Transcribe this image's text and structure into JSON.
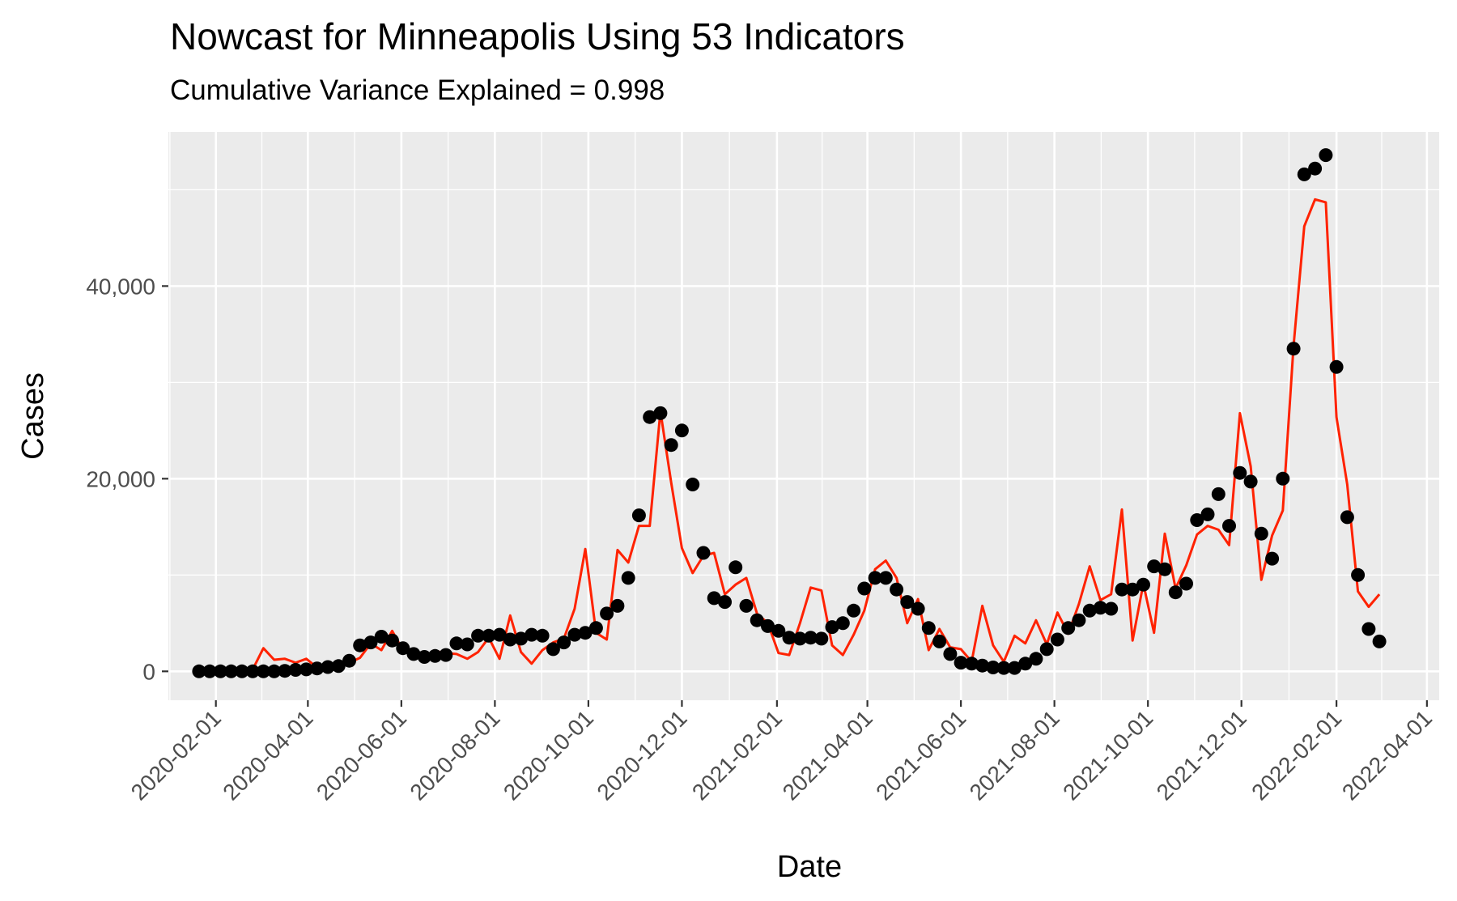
{
  "chart_data": {
    "type": "line",
    "title": "Nowcast for Minneapolis Using 53 Indicators",
    "subtitle": "Cumulative Variance Explained = 0.998",
    "xlabel": "Date",
    "ylabel": "Cases",
    "x_type": "date",
    "xlim": [
      "2020-01-01",
      "2022-04-09"
    ],
    "ylim": [
      -3000,
      56000
    ],
    "x_ticks": [
      "2020-02-01",
      "2020-04-01",
      "2020-06-01",
      "2020-08-01",
      "2020-10-01",
      "2020-12-01",
      "2021-02-01",
      "2021-04-01",
      "2021-06-01",
      "2021-08-01",
      "2021-10-01",
      "2021-12-01",
      "2022-02-01",
      "2022-04-01"
    ],
    "y_ticks": [
      0,
      20000,
      40000
    ],
    "y_tick_labels": [
      "0",
      "20,000",
      "40,000"
    ],
    "grid": true,
    "background": "#EBEBEB",
    "series": [
      {
        "role": "points",
        "color": "#000000",
        "points": [
          [
            "2020-01-21",
            0
          ],
          [
            "2020-01-28",
            0
          ],
          [
            "2020-02-04",
            0
          ],
          [
            "2020-02-11",
            0
          ],
          [
            "2020-02-18",
            0
          ],
          [
            "2020-02-25",
            0
          ],
          [
            "2020-03-03",
            0
          ],
          [
            "2020-03-10",
            0
          ],
          [
            "2020-03-17",
            50
          ],
          [
            "2020-03-24",
            150
          ],
          [
            "2020-03-31",
            200
          ],
          [
            "2020-04-07",
            300
          ],
          [
            "2020-04-14",
            450
          ],
          [
            "2020-04-21",
            550
          ],
          [
            "2020-04-28",
            1100
          ],
          [
            "2020-05-05",
            2700
          ],
          [
            "2020-05-12",
            3000
          ],
          [
            "2020-05-19",
            3600
          ],
          [
            "2020-05-26",
            3200
          ],
          [
            "2020-06-02",
            2400
          ],
          [
            "2020-06-09",
            1800
          ],
          [
            "2020-06-16",
            1500
          ],
          [
            "2020-06-23",
            1600
          ],
          [
            "2020-06-30",
            1700
          ],
          [
            "2020-07-07",
            2900
          ],
          [
            "2020-07-14",
            2800
          ],
          [
            "2020-07-21",
            3700
          ],
          [
            "2020-07-28",
            3700
          ],
          [
            "2020-08-04",
            3800
          ],
          [
            "2020-08-11",
            3300
          ],
          [
            "2020-08-18",
            3400
          ],
          [
            "2020-08-25",
            3800
          ],
          [
            "2020-09-01",
            3700
          ],
          [
            "2020-09-08",
            2300
          ],
          [
            "2020-09-15",
            3000
          ],
          [
            "2020-09-22",
            3800
          ],
          [
            "2020-09-29",
            4000
          ],
          [
            "2020-10-06",
            4500
          ],
          [
            "2020-10-13",
            6000
          ],
          [
            "2020-10-20",
            6800
          ],
          [
            "2020-10-27",
            9700
          ],
          [
            "2020-11-03",
            16200
          ],
          [
            "2020-11-10",
            26400
          ],
          [
            "2020-11-17",
            26800
          ],
          [
            "2020-11-24",
            23500
          ],
          [
            "2020-12-01",
            25000
          ],
          [
            "2020-12-08",
            19400
          ],
          [
            "2020-12-15",
            12300
          ],
          [
            "2020-12-22",
            7600
          ],
          [
            "2020-12-29",
            7200
          ],
          [
            "2021-01-05",
            10800
          ],
          [
            "2021-01-12",
            6800
          ],
          [
            "2021-01-19",
            5300
          ],
          [
            "2021-01-26",
            4700
          ],
          [
            "2021-02-02",
            4200
          ],
          [
            "2021-02-09",
            3500
          ],
          [
            "2021-02-16",
            3400
          ],
          [
            "2021-02-23",
            3500
          ],
          [
            "2021-03-02",
            3400
          ],
          [
            "2021-03-09",
            4600
          ],
          [
            "2021-03-16",
            5000
          ],
          [
            "2021-03-23",
            6300
          ],
          [
            "2021-03-30",
            8600
          ],
          [
            "2021-04-06",
            9700
          ],
          [
            "2021-04-13",
            9700
          ],
          [
            "2021-04-20",
            8500
          ],
          [
            "2021-04-27",
            7200
          ],
          [
            "2021-05-04",
            6500
          ],
          [
            "2021-05-11",
            4500
          ],
          [
            "2021-05-18",
            3100
          ],
          [
            "2021-05-25",
            1800
          ],
          [
            "2021-06-01",
            900
          ],
          [
            "2021-06-08",
            800
          ],
          [
            "2021-06-15",
            600
          ],
          [
            "2021-06-22",
            400
          ],
          [
            "2021-06-29",
            350
          ],
          [
            "2021-07-06",
            350
          ],
          [
            "2021-07-13",
            800
          ],
          [
            "2021-07-20",
            1300
          ],
          [
            "2021-07-27",
            2300
          ],
          [
            "2021-08-03",
            3300
          ],
          [
            "2021-08-10",
            4500
          ],
          [
            "2021-08-17",
            5300
          ],
          [
            "2021-08-24",
            6300
          ],
          [
            "2021-08-31",
            6600
          ],
          [
            "2021-09-07",
            6500
          ],
          [
            "2021-09-14",
            8500
          ],
          [
            "2021-09-21",
            8500
          ],
          [
            "2021-09-28",
            9000
          ],
          [
            "2021-10-05",
            10900
          ],
          [
            "2021-10-12",
            10600
          ],
          [
            "2021-10-19",
            8200
          ],
          [
            "2021-10-26",
            9100
          ],
          [
            "2021-11-02",
            15700
          ],
          [
            "2021-11-09",
            16300
          ],
          [
            "2021-11-16",
            18400
          ],
          [
            "2021-11-23",
            15100
          ],
          [
            "2021-11-30",
            20600
          ],
          [
            "2021-12-07",
            19700
          ],
          [
            "2021-12-14",
            14300
          ],
          [
            "2021-12-21",
            11700
          ],
          [
            "2021-12-28",
            20000
          ],
          [
            "2022-01-04",
            33500
          ],
          [
            "2022-01-11",
            51600
          ],
          [
            "2022-01-18",
            52200
          ],
          [
            "2022-01-25",
            53600
          ],
          [
            "2022-02-01",
            31600
          ],
          [
            "2022-02-08",
            16000
          ],
          [
            "2022-02-15",
            10000
          ],
          [
            "2022-02-22",
            4400
          ],
          [
            "2022-03-01",
            3100
          ]
        ]
      },
      {
        "role": "line",
        "color": "#FF2200",
        "points": [
          [
            "2020-01-21",
            100
          ],
          [
            "2020-01-28",
            150
          ],
          [
            "2020-02-04",
            100
          ],
          [
            "2020-02-11",
            150
          ],
          [
            "2020-02-18",
            100
          ],
          [
            "2020-02-25",
            200
          ],
          [
            "2020-03-03",
            2400
          ],
          [
            "2020-03-10",
            1200
          ],
          [
            "2020-03-17",
            1300
          ],
          [
            "2020-03-24",
            900
          ],
          [
            "2020-03-31",
            1300
          ],
          [
            "2020-04-07",
            400
          ],
          [
            "2020-04-14",
            600
          ],
          [
            "2020-04-21",
            800
          ],
          [
            "2020-04-28",
            900
          ],
          [
            "2020-05-05",
            1400
          ],
          [
            "2020-05-12",
            2900
          ],
          [
            "2020-05-19",
            2200
          ],
          [
            "2020-05-26",
            4200
          ],
          [
            "2020-06-02",
            2200
          ],
          [
            "2020-06-09",
            1900
          ],
          [
            "2020-06-16",
            1400
          ],
          [
            "2020-06-23",
            2100
          ],
          [
            "2020-06-30",
            1900
          ],
          [
            "2020-07-07",
            1800
          ],
          [
            "2020-07-14",
            1300
          ],
          [
            "2020-07-21",
            2000
          ],
          [
            "2020-07-28",
            3500
          ],
          [
            "2020-08-04",
            1300
          ],
          [
            "2020-08-11",
            5800
          ],
          [
            "2020-08-18",
            2000
          ],
          [
            "2020-08-25",
            800
          ],
          [
            "2020-09-01",
            2200
          ],
          [
            "2020-09-08",
            3000
          ],
          [
            "2020-09-15",
            3400
          ],
          [
            "2020-09-22",
            6500
          ],
          [
            "2020-09-29",
            12700
          ],
          [
            "2020-10-06",
            4000
          ],
          [
            "2020-10-13",
            3300
          ],
          [
            "2020-10-20",
            12600
          ],
          [
            "2020-10-27",
            11300
          ],
          [
            "2020-11-03",
            15100
          ],
          [
            "2020-11-10",
            15100
          ],
          [
            "2020-11-17",
            27000
          ],
          [
            "2020-11-24",
            19600
          ],
          [
            "2020-12-01",
            12800
          ],
          [
            "2020-12-08",
            10200
          ],
          [
            "2020-12-15",
            12000
          ],
          [
            "2020-12-22",
            12300
          ],
          [
            "2020-12-29",
            8000
          ],
          [
            "2021-01-05",
            9000
          ],
          [
            "2021-01-12",
            9700
          ],
          [
            "2021-01-19",
            6000
          ],
          [
            "2021-01-26",
            5000
          ],
          [
            "2021-02-02",
            1900
          ],
          [
            "2021-02-09",
            1700
          ],
          [
            "2021-02-16",
            5000
          ],
          [
            "2021-02-23",
            8700
          ],
          [
            "2021-03-02",
            8400
          ],
          [
            "2021-03-09",
            2700
          ],
          [
            "2021-03-16",
            1700
          ],
          [
            "2021-03-23",
            3800
          ],
          [
            "2021-03-30",
            6300
          ],
          [
            "2021-04-06",
            10600
          ],
          [
            "2021-04-13",
            11500
          ],
          [
            "2021-04-20",
            9700
          ],
          [
            "2021-04-27",
            5000
          ],
          [
            "2021-05-04",
            7500
          ],
          [
            "2021-05-11",
            2200
          ],
          [
            "2021-05-18",
            4400
          ],
          [
            "2021-05-25",
            2500
          ],
          [
            "2021-06-01",
            2300
          ],
          [
            "2021-06-08",
            1000
          ],
          [
            "2021-06-15",
            6800
          ],
          [
            "2021-06-22",
            2700
          ],
          [
            "2021-06-29",
            1000
          ],
          [
            "2021-07-06",
            3700
          ],
          [
            "2021-07-13",
            2900
          ],
          [
            "2021-07-20",
            5300
          ],
          [
            "2021-07-27",
            2800
          ],
          [
            "2021-08-03",
            6100
          ],
          [
            "2021-08-10",
            3900
          ],
          [
            "2021-08-17",
            7000
          ],
          [
            "2021-08-24",
            10900
          ],
          [
            "2021-08-31",
            7400
          ],
          [
            "2021-09-07",
            8000
          ],
          [
            "2021-09-14",
            16800
          ],
          [
            "2021-09-21",
            3200
          ],
          [
            "2021-09-28",
            9100
          ],
          [
            "2021-10-05",
            4000
          ],
          [
            "2021-10-12",
            14300
          ],
          [
            "2021-10-19",
            8600
          ],
          [
            "2021-10-26",
            11000
          ],
          [
            "2021-11-02",
            14200
          ],
          [
            "2021-11-09",
            15100
          ],
          [
            "2021-11-16",
            14700
          ],
          [
            "2021-11-23",
            13100
          ],
          [
            "2021-11-30",
            26800
          ],
          [
            "2021-12-07",
            21300
          ],
          [
            "2021-12-14",
            9500
          ],
          [
            "2021-12-21",
            14100
          ],
          [
            "2021-12-28",
            16700
          ],
          [
            "2022-01-04",
            33800
          ],
          [
            "2022-01-11",
            46200
          ],
          [
            "2022-01-18",
            49000
          ],
          [
            "2022-01-25",
            48700
          ],
          [
            "2022-02-01",
            26400
          ],
          [
            "2022-02-08",
            19400
          ],
          [
            "2022-02-15",
            8300
          ],
          [
            "2022-02-22",
            6700
          ],
          [
            "2022-03-01",
            8000
          ]
        ]
      }
    ]
  }
}
